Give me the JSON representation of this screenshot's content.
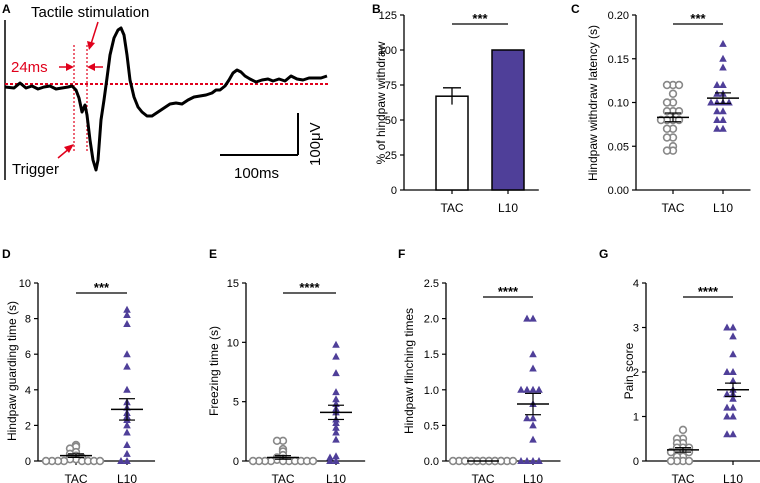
{
  "chart_data": [
    {
      "panel": "A",
      "type": "line",
      "annotations": [
        "Tactile stimulation",
        "24ms",
        "Trigger"
      ],
      "scalebar": {
        "time": "100ms",
        "voltage": "100μV"
      }
    },
    {
      "panel": "B",
      "type": "bar",
      "ylabel": "% of hindpaw withdraw",
      "categories": [
        "TAC",
        "L10"
      ],
      "values": [
        67,
        100
      ],
      "errors": [
        6,
        0
      ],
      "ylim": [
        0,
        125
      ],
      "yticks": [
        0,
        25,
        50,
        75,
        100,
        125
      ],
      "significance": "***",
      "colors": [
        "#ffffff",
        "#4f3f99"
      ]
    },
    {
      "panel": "C",
      "type": "scatter",
      "ylabel": "Hindpaw withdraw latency (s)",
      "categories": [
        "TAC",
        "L10"
      ],
      "ylim": [
        0,
        0.2
      ],
      "yticks": [
        0.0,
        0.05,
        0.1,
        0.15,
        0.2
      ],
      "ytick_labels": [
        "0.00",
        "0.05",
        "0.10",
        "0.15",
        "0.20"
      ],
      "significance": "***",
      "series": [
        {
          "name": "TAC",
          "mean": 0.083,
          "sem": 0.005,
          "values": [
            0.12,
            0.12,
            0.12,
            0.11,
            0.1,
            0.1,
            0.09,
            0.09,
            0.09,
            0.08,
            0.08,
            0.08,
            0.08,
            0.07,
            0.07,
            0.06,
            0.06,
            0.05,
            0.045,
            0.045
          ]
        },
        {
          "name": "L10",
          "mean": 0.105,
          "sem": 0.006,
          "values": [
            0.167,
            0.15,
            0.14,
            0.12,
            0.12,
            0.11,
            0.11,
            0.1,
            0.1,
            0.1,
            0.1,
            0.09,
            0.09,
            0.08,
            0.08,
            0.07,
            0.07
          ]
        }
      ]
    },
    {
      "panel": "D",
      "type": "scatter",
      "ylabel": "Hindpaw guarding time (s)",
      "categories": [
        "TAC",
        "L10"
      ],
      "ylim": [
        0,
        10
      ],
      "yticks": [
        0,
        2,
        4,
        6,
        8,
        10
      ],
      "significance": "***",
      "series": [
        {
          "name": "TAC",
          "mean": 0.3,
          "sem": 0.1,
          "values": [
            0.9,
            0.8,
            0.7,
            0.5,
            0.4,
            0.3,
            0.2,
            0.2,
            0.1,
            0.1,
            0.0,
            0.0,
            0.0,
            0.0,
            0.0,
            0.0,
            0.0,
            0.0
          ]
        },
        {
          "name": "L10",
          "mean": 2.9,
          "sem": 0.6,
          "values": [
            8.5,
            8.2,
            7.7,
            6.0,
            5.3,
            4.0,
            3.3,
            3.0,
            2.7,
            2.5,
            2.3,
            2.0,
            1.6,
            0.9,
            0.4,
            0.0,
            0.0
          ]
        }
      ]
    },
    {
      "panel": "E",
      "type": "scatter",
      "ylabel": "Freezing time (s)",
      "categories": [
        "TAC",
        "L10"
      ],
      "ylim": [
        0,
        15
      ],
      "yticks": [
        0,
        5,
        10,
        15
      ],
      "significance": "****",
      "series": [
        {
          "name": "TAC",
          "mean": 0.3,
          "sem": 0.15,
          "values": [
            1.7,
            1.7,
            1.0,
            0.8,
            0.5,
            0.3,
            0.2,
            0.1,
            0.0,
            0.0,
            0.0,
            0.0,
            0.0,
            0.0,
            0.0,
            0.0,
            0.0,
            0.0
          ]
        },
        {
          "name": "L10",
          "mean": 4.1,
          "sem": 0.6,
          "values": [
            9.8,
            8.8,
            7.4,
            5.8,
            5.2,
            4.8,
            4.4,
            4.1,
            3.5,
            3.2,
            2.8,
            2.4,
            1.8,
            0.4,
            0.3,
            0.0,
            0.0
          ]
        }
      ]
    },
    {
      "panel": "F",
      "type": "scatter",
      "ylabel": "Hindpaw flinching times",
      "categories": [
        "TAC",
        "L10"
      ],
      "ylim": [
        0,
        2.5
      ],
      "yticks": [
        0,
        0.5,
        1.0,
        1.5,
        2.0,
        2.5
      ],
      "ytick_labels": [
        "0.0",
        "0.5",
        "1.0",
        "1.5",
        "2.0",
        "2.5"
      ],
      "significance": "****",
      "series": [
        {
          "name": "TAC",
          "mean": 0.0,
          "sem": 0.0,
          "values": [
            0,
            0,
            0,
            0,
            0,
            0,
            0,
            0,
            0,
            0,
            0,
            0,
            0,
            0,
            0,
            0,
            0,
            0
          ]
        },
        {
          "name": "L10",
          "mean": 0.8,
          "sem": 0.15,
          "values": [
            2.0,
            2.0,
            1.5,
            1.3,
            1.0,
            1.0,
            1.0,
            1.0,
            0.8,
            0.6,
            0.6,
            0.5,
            0.3,
            0.0,
            0.0,
            0.0,
            0.0
          ]
        }
      ]
    },
    {
      "panel": "G",
      "type": "scatter",
      "ylabel": "Pain score",
      "categories": [
        "TAC",
        "L10"
      ],
      "ylim": [
        0,
        4
      ],
      "yticks": [
        0,
        1,
        2,
        3,
        4
      ],
      "significance": "****",
      "series": [
        {
          "name": "TAC",
          "mean": 0.25,
          "sem": 0.05,
          "values": [
            0.7,
            0.5,
            0.5,
            0.4,
            0.4,
            0.3,
            0.3,
            0.3,
            0.2,
            0.2,
            0.2,
            0.2,
            0.1,
            0.1,
            0.0,
            0.0,
            0.0,
            0.0
          ]
        },
        {
          "name": "L10",
          "mean": 1.6,
          "sem": 0.15,
          "values": [
            3.0,
            3.0,
            2.8,
            2.4,
            2.0,
            2.0,
            1.8,
            1.6,
            1.5,
            1.5,
            1.4,
            1.2,
            1.2,
            1.0,
            1.0,
            0.6,
            0.6
          ]
        }
      ]
    }
  ],
  "colors": {
    "tac": "#888888",
    "l10": "#4f3f99",
    "trace": "#000000",
    "annotation": "#e0001b"
  }
}
